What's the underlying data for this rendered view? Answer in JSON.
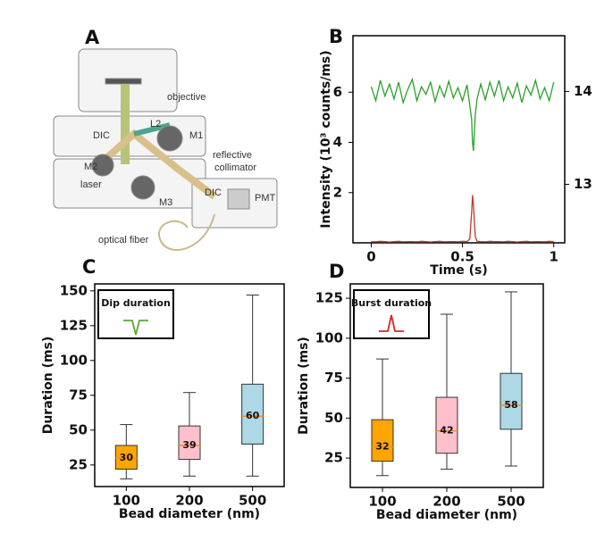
{
  "figure_a": {
    "letter": "A",
    "labels": [
      "objective",
      "L2",
      "DIC",
      "M1",
      "reflective",
      "collimator",
      "M2",
      "laser",
      "M3",
      "DIC",
      "PMT",
      "optical fiber"
    ]
  },
  "chart_data": [
    {
      "type": "line",
      "letter": "B",
      "xlabel": "Time (s)",
      "ylabel": "Intensity (10³ counts/ms)",
      "x": [
        0,
        0.025,
        0.05,
        0.075,
        0.1,
        0.125,
        0.15,
        0.175,
        0.2,
        0.225,
        0.25,
        0.275,
        0.3,
        0.325,
        0.35,
        0.375,
        0.4,
        0.425,
        0.45,
        0.475,
        0.5,
        0.525,
        0.54,
        0.55,
        0.555,
        0.56,
        0.57,
        0.58,
        0.6,
        0.625,
        0.65,
        0.675,
        0.7,
        0.725,
        0.75,
        0.775,
        0.8,
        0.825,
        0.85,
        0.875,
        0.9,
        0.925,
        0.95,
        0.975,
        1.0
      ],
      "series": [
        {
          "color": "#2ca02c",
          "axis": "y2",
          "values": [
            14.05,
            13.9,
            14.12,
            13.95,
            14.08,
            13.92,
            14.1,
            13.88,
            14.02,
            14.13,
            13.9,
            14.05,
            13.97,
            14.1,
            13.89,
            14.06,
            13.94,
            14.11,
            13.93,
            14.04,
            13.9,
            14.07,
            13.85,
            13.7,
            13.45,
            13.36,
            13.75,
            13.92,
            14.08,
            13.91,
            14.1,
            13.95,
            14.12,
            13.9,
            14.05,
            13.93,
            14.09,
            13.88,
            14.06,
            13.96,
            14.12,
            13.92,
            14.04,
            13.9,
            14.1
          ]
        },
        {
          "color": "#c0392b",
          "values": [
            0.05,
            0.04,
            0.06,
            0.05,
            0.03,
            0.05,
            0.06,
            0.04,
            0.05,
            0.05,
            0.04,
            0.06,
            0.05,
            0.03,
            0.05,
            0.06,
            0.04,
            0.05,
            0.05,
            0.04,
            0.06,
            0.05,
            0.15,
            1.2,
            1.9,
            1.5,
            0.25,
            0.06,
            0.05,
            0.04,
            0.06,
            0.05,
            0.05,
            0.04,
            0.06,
            0.05,
            0.03,
            0.05,
            0.06,
            0.04,
            0.05,
            0.05,
            0.04,
            0.06,
            0.05
          ]
        }
      ],
      "xlim": [
        -0.1,
        1.06
      ],
      "xticks": [
        0,
        0.5,
        1
      ],
      "ylim": [
        0,
        8.25
      ],
      "yticks": [
        2,
        4,
        6
      ],
      "y_color": "#c0392b",
      "y2lim": [
        12.37,
        14.6
      ],
      "y2ticks": [
        13,
        14
      ],
      "y2_color": "#2ca02c"
    },
    {
      "type": "box",
      "letter": "C",
      "inset_label": "Dip duration",
      "inset_color": "#5fa832",
      "xlabel": "Bead diameter (nm)",
      "ylabel": "Duration (ms)",
      "categories": [
        "100",
        "200",
        "500"
      ],
      "colors": [
        "#ffa500",
        "#ffc0cb",
        "#add8e6"
      ],
      "low": [
        15,
        17,
        17
      ],
      "q1": [
        22,
        29,
        40
      ],
      "median": [
        30,
        39,
        60
      ],
      "q3": [
        39,
        53,
        83
      ],
      "high": [
        54,
        77,
        147
      ],
      "ylim": [
        9.5,
        155
      ],
      "yticks": [
        25,
        50,
        75,
        100,
        125,
        150
      ]
    },
    {
      "type": "box",
      "letter": "D",
      "inset_label": "Burst duration",
      "inset_color": "#d62728",
      "xlabel": "Bead diameter (nm)",
      "ylabel": "Duration (ms)",
      "categories": [
        "100",
        "200",
        "500"
      ],
      "colors": [
        "#ffa500",
        "#ffc0cb",
        "#add8e6"
      ],
      "low": [
        14,
        18,
        20
      ],
      "q1": [
        23,
        28,
        43
      ],
      "median": [
        32,
        42,
        58
      ],
      "q3": [
        49,
        63,
        78
      ],
      "high": [
        87,
        115,
        129
      ],
      "ylim": [
        6.6,
        134
      ],
      "yticks": [
        25,
        50,
        75,
        100,
        125
      ]
    }
  ]
}
